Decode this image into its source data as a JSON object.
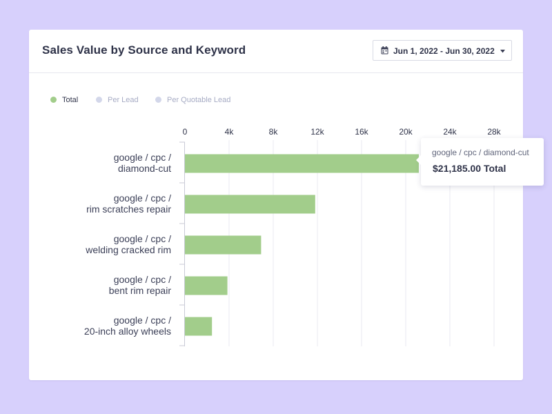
{
  "header": {
    "title": "Sales Value by Source and Keyword",
    "date_range": "Jun 1, 2022 - Jun 30, 2022"
  },
  "legend": [
    {
      "label": "Total",
      "color": "#a2cd8b",
      "active": true
    },
    {
      "label": "Per Lead",
      "color": "#d3d7ea",
      "active": false
    },
    {
      "label": "Per Quotable Lead",
      "color": "#d3d7ea",
      "active": false
    }
  ],
  "tooltip": {
    "label": "google / cpc / diamond-cut",
    "value": "$21,185.00 Total"
  },
  "colors": {
    "bar": "#a2cd8b",
    "grid": "#e9eaf0",
    "axis": "#c8cad6",
    "category_text": "#3b3f57",
    "tick_text": "#2e3248",
    "legend_inactive_text": "#a6abc4",
    "legend_active_text": "#2e3248"
  },
  "chart_data": {
    "type": "bar",
    "orientation": "horizontal",
    "title": "Sales Value by Source and Keyword",
    "xlabel": "",
    "ylabel": "",
    "series_name": "Total",
    "categories": [
      [
        "google / cpc /",
        "diamond-cut"
      ],
      [
        "google / cpc /",
        "rim scratches repair"
      ],
      [
        "google / cpc /",
        "welding cracked rim"
      ],
      [
        "google / cpc /",
        "bent rim repair"
      ],
      [
        "google / cpc /",
        "20-inch alloy wheels"
      ]
    ],
    "values": [
      21185,
      11800,
      6900,
      3850,
      2450
    ],
    "xlim": [
      0,
      30000
    ],
    "ticks": [
      0,
      4000,
      8000,
      12000,
      16000,
      20000,
      24000,
      28000
    ],
    "tick_labels": [
      "0",
      "4k",
      "8k",
      "12k",
      "16k",
      "20k",
      "24k",
      "28k"
    ],
    "grid": true
  }
}
